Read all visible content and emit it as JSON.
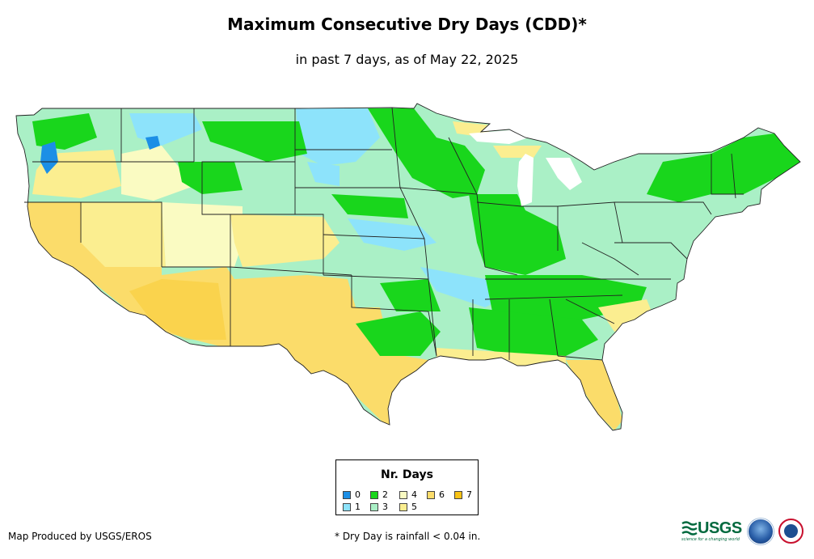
{
  "title": "Maximum Consecutive Dry Days (CDD)*",
  "subtitle": "in past 7 days, as of May 22, 2025",
  "legend": {
    "title": "Nr. Days",
    "items": [
      {
        "label": "0",
        "color": "#1c8fe6"
      },
      {
        "label": "1",
        "color": "#8de3fb"
      },
      {
        "label": "2",
        "color": "#19d61c"
      },
      {
        "label": "3",
        "color": "#aaf0c6"
      },
      {
        "label": "4",
        "color": "#fafbc2"
      },
      {
        "label": "5",
        "color": "#fbee90"
      },
      {
        "label": "6",
        "color": "#fbdc6a"
      },
      {
        "label": "7",
        "color": "#f9c316"
      }
    ]
  },
  "footer": {
    "credit": "Map Produced by USGS/EROS",
    "note": "* Dry Day is rainfall < 0.04 in."
  },
  "logos": {
    "usgs": "USGS",
    "usgs_tagline": "science for a changing world",
    "noaa": "noaa-logo",
    "nws": "nws-logo"
  }
}
